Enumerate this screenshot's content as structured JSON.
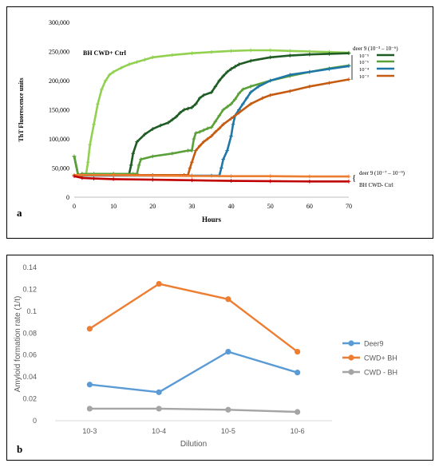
{
  "chart_data": [
    {
      "type": "line",
      "panel_label": "a",
      "xlabel": "Hours",
      "ylabel": "ThT Fluorescence units",
      "xlim": [
        0,
        70
      ],
      "ylim": [
        0,
        300000
      ],
      "x_ticks": [
        "0",
        "10",
        "20",
        "30",
        "40",
        "50",
        "60",
        "70"
      ],
      "y_ticks": [
        "0",
        "50,000",
        "100,000",
        "150,000",
        "200,000",
        "250,000",
        "300,000"
      ],
      "grid": false,
      "annotations": {
        "pos_ctrl": "BH CWD+ Ctrl",
        "deer_hi_group": "deer 9 (10⁻³ – 10⁻⁶)",
        "deer_lo_group": "deer 9 (10⁻⁷ – 10⁻⁹)",
        "neg_ctrl": "BH CWD- Ctrl"
      },
      "legend_position": "right",
      "legend": [
        "10⁻⁵",
        "10⁻⁶",
        "10⁻⁴",
        "10⁻³"
      ],
      "series": [
        {
          "name": "BH CWD+ Ctrl",
          "color": "#92d050",
          "x": [
            0,
            1,
            2,
            3,
            3.5,
            4,
            5,
            6,
            7,
            8,
            9,
            10,
            12,
            14,
            16,
            18,
            20,
            25,
            30,
            35,
            40,
            45,
            50,
            55,
            60,
            65,
            70
          ],
          "y": [
            70000,
            38000,
            36000,
            38000,
            60000,
            90000,
            125000,
            160000,
            185000,
            200000,
            210000,
            215000,
            222000,
            228000,
            232000,
            236000,
            240000,
            244000,
            247000,
            249000,
            251000,
            252000,
            252000,
            251000,
            250000,
            249000,
            248000
          ]
        },
        {
          "name": "10⁻⁵",
          "color": "#1e5c23",
          "x": [
            0,
            1,
            2,
            5,
            10,
            14,
            14.5,
            15,
            16,
            18,
            20,
            22,
            24,
            25,
            26,
            27,
            28,
            29,
            30,
            31,
            32,
            33,
            35,
            36,
            37,
            38,
            39,
            40,
            41,
            42,
            45,
            50,
            55,
            60,
            65,
            70
          ],
          "y": [
            70000,
            38000,
            40000,
            40000,
            40000,
            40000,
            55000,
            75000,
            95000,
            108000,
            117000,
            123000,
            128000,
            133000,
            138000,
            145000,
            150000,
            152000,
            154000,
            160000,
            170000,
            175000,
            180000,
            190000,
            200000,
            208000,
            215000,
            220000,
            224000,
            228000,
            234000,
            240000,
            243000,
            245000,
            246000,
            247000
          ]
        },
        {
          "name": "10⁻⁶",
          "color": "#5aa038",
          "x": [
            0,
            1,
            2,
            5,
            10,
            15,
            16,
            16.5,
            17,
            20,
            25,
            29,
            30,
            30.5,
            31,
            32,
            33,
            34,
            35,
            36,
            37,
            38,
            39,
            40,
            41,
            42,
            43,
            45,
            50,
            55,
            60,
            65,
            70
          ],
          "y": [
            70000,
            38000,
            40000,
            40000,
            40000,
            40000,
            40000,
            55000,
            65000,
            70000,
            75000,
            80000,
            80000,
            100000,
            110000,
            112000,
            115000,
            118000,
            120000,
            130000,
            140000,
            150000,
            155000,
            160000,
            168000,
            178000,
            185000,
            190000,
            200000,
            208000,
            215000,
            221000,
            226000
          ]
        },
        {
          "name": "10⁻⁴",
          "color": "#1f77a8",
          "x": [
            0,
            1,
            2,
            10,
            20,
            30,
            35,
            37,
            37.5,
            38,
            39,
            40,
            40.5,
            41,
            42,
            43,
            44,
            45,
            47,
            50,
            55,
            60,
            65,
            70
          ],
          "y": [
            38000,
            37000,
            37000,
            37000,
            37000,
            37000,
            37000,
            37000,
            50000,
            65000,
            80000,
            105000,
            125000,
            140000,
            150000,
            160000,
            170000,
            180000,
            190000,
            200000,
            210000,
            215000,
            220000,
            225000
          ]
        },
        {
          "name": "10⁻³",
          "color": "#c55a11",
          "x": [
            0,
            1,
            2,
            10,
            20,
            28,
            29,
            29.5,
            30,
            31,
            32,
            33,
            34,
            35,
            36,
            37,
            38,
            40,
            42,
            45,
            48,
            50,
            55,
            60,
            65,
            70
          ],
          "y": [
            38000,
            38000,
            38000,
            38000,
            38000,
            38000,
            38000,
            50000,
            60000,
            80000,
            88000,
            95000,
            100000,
            105000,
            112000,
            118000,
            125000,
            135000,
            145000,
            160000,
            170000,
            175000,
            182000,
            190000,
            196000,
            202000
          ]
        },
        {
          "name": "deer 9 (10⁻⁷ – 10⁻⁹)",
          "color": "#ed7d31",
          "x": [
            0,
            5,
            10,
            20,
            30,
            40,
            50,
            60,
            70
          ],
          "y": [
            38000,
            38000,
            38000,
            37000,
            36500,
            36000,
            36000,
            35500,
            35500
          ]
        },
        {
          "name": "BH CWD- Ctrl",
          "color": "#c00000",
          "x": [
            0,
            2,
            5,
            10,
            20,
            30,
            40,
            50,
            60,
            70
          ],
          "y": [
            36000,
            33000,
            32000,
            31000,
            30000,
            29000,
            28000,
            27500,
            27000,
            27000
          ]
        }
      ]
    },
    {
      "type": "line",
      "panel_label": "b",
      "xlabel": "Dilution",
      "ylabel": "Amyloid formation rate (1/t)",
      "categories": [
        "10-3",
        "10-4",
        "10-5",
        "10-6"
      ],
      "ylim": [
        0,
        0.14
      ],
      "y_ticks": [
        "0",
        "0.02",
        "0.04",
        "0.06",
        "0.08",
        "0.1",
        "0.12",
        "0.14"
      ],
      "grid": false,
      "legend_position": "right",
      "series": [
        {
          "name": "Deer9",
          "color": "#5b9bd5",
          "values": [
            0.033,
            0.026,
            0.063,
            0.044
          ]
        },
        {
          "name": "CWD+ BH",
          "color": "#ed7d31",
          "values": [
            0.084,
            0.125,
            0.111,
            0.063
          ]
        },
        {
          "name": "CWD - BH",
          "color": "#a5a5a5",
          "values": [
            0.011,
            0.011,
            0.01,
            0.008
          ]
        }
      ]
    }
  ]
}
